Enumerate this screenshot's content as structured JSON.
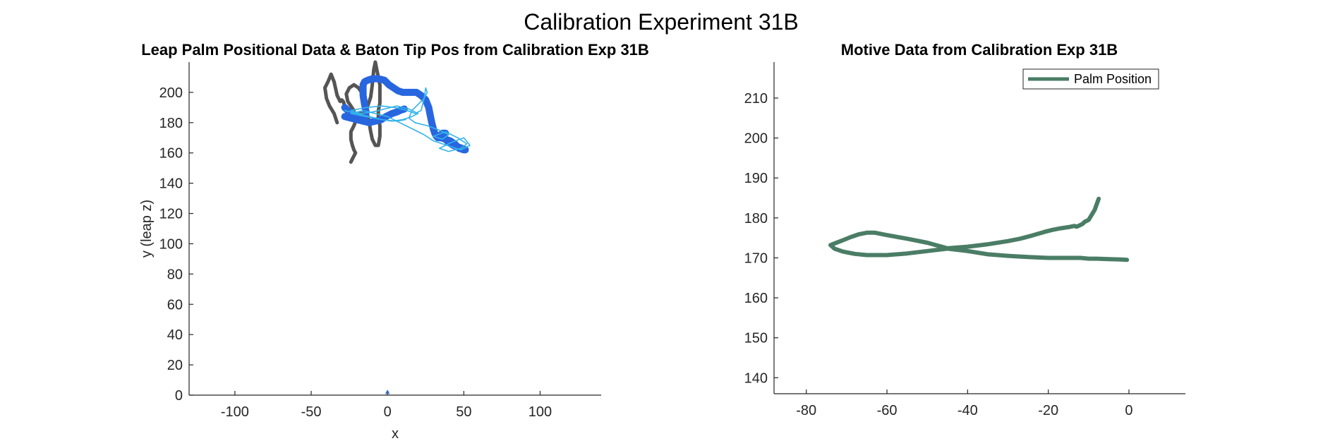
{
  "figure_title": "Calibration Experiment 31B",
  "chart_data": [
    {
      "type": "line",
      "title": "Leap Palm Positional Data & Baton Tip Pos from Calibration Exp 31B",
      "xlabel": "x",
      "ylabel": "y (leap z)",
      "xlim": [
        -130,
        140
      ],
      "ylim": [
        0,
        220
      ],
      "xticks": [
        -100,
        -50,
        0,
        50,
        100
      ],
      "yticks": [
        0,
        20,
        40,
        60,
        80,
        100,
        120,
        140,
        160,
        180,
        200
      ],
      "grid": false,
      "series": [
        {
          "color": "#555555",
          "width": 5,
          "x": [
            -33,
            -35,
            -38,
            -40,
            -41,
            -39,
            -37,
            -35,
            -33,
            -31,
            -30,
            -29,
            -28,
            -26,
            -25,
            -23,
            -22,
            -24,
            -26,
            -27,
            -25,
            -22,
            -19,
            -17,
            -16,
            -15,
            -14,
            -13,
            -12,
            -11,
            -10,
            -8,
            -6,
            -5,
            -5,
            -6,
            -6,
            -5,
            -5,
            -5,
            -6,
            -7,
            -8,
            -9,
            -10,
            -11,
            -13,
            -15,
            -18,
            -20,
            -22,
            -24,
            -24,
            -23,
            -22,
            -21,
            -22,
            -23,
            -24
          ],
          "y": [
            180,
            186,
            191,
            196,
            203,
            207,
            212,
            207,
            198,
            194,
            195,
            194,
            191,
            185,
            183,
            184,
            188,
            191,
            194,
            199,
            203,
            205,
            203,
            200,
            194,
            189,
            186,
            185,
            180,
            174,
            169,
            165,
            165,
            171,
            178,
            183,
            188,
            193,
            199,
            205,
            210,
            215,
            220,
            215,
            205,
            197,
            191,
            186,
            186,
            183,
            178,
            174,
            169,
            165,
            162,
            160,
            158,
            156,
            154
          ]
        },
        {
          "color": "#2866e0",
          "width": 10,
          "x": [
            -28,
            -26,
            -22,
            -18,
            -16,
            -15,
            -14,
            -15,
            -16,
            -16,
            -16,
            -15,
            -13,
            -10,
            -6,
            -2,
            1,
            4,
            7,
            10,
            13,
            16,
            19,
            22,
            25,
            27,
            28,
            29,
            30,
            31,
            32,
            33,
            35,
            38,
            41,
            44,
            47,
            50,
            51,
            49,
            46,
            43,
            40,
            38,
            36,
            35,
            36,
            38
          ],
          "y": [
            190,
            188,
            185,
            183,
            181,
            183,
            187,
            192,
            198,
            203,
            205,
            207,
            208,
            209,
            209,
            208,
            205,
            203,
            201,
            200,
            200,
            200,
            200,
            198,
            195,
            190,
            185,
            180,
            176,
            173,
            171,
            170,
            170,
            169,
            168,
            166,
            163,
            162,
            162,
            163,
            164,
            165,
            167,
            169,
            170,
            172,
            173,
            173
          ]
        },
        {
          "color": "#2866e0",
          "width": 10,
          "x": [
            -28,
            -24,
            -20,
            -16,
            -12,
            -8,
            -4,
            -1,
            3,
            6,
            8,
            11
          ],
          "y": [
            184,
            183,
            182,
            181,
            180,
            181,
            182,
            184,
            186,
            187,
            188,
            189
          ]
        },
        {
          "color": "#33b3ea",
          "width": 1.6,
          "x": [
            -28,
            -20,
            -12,
            -4,
            3,
            10,
            16,
            20,
            14,
            6,
            -2,
            -10,
            -18,
            -24,
            -14,
            -4,
            5,
            13,
            18,
            22,
            24,
            25,
            26,
            24,
            20,
            16,
            14,
            18,
            26,
            34,
            40,
            36,
            30,
            38,
            46,
            52,
            48,
            40,
            34,
            42,
            50,
            54,
            48,
            42,
            36,
            30,
            24,
            16,
            8,
            0,
            -8,
            -16,
            -24,
            -14,
            -4,
            6,
            12
          ],
          "y": [
            188,
            186,
            184,
            182,
            181,
            182,
            184,
            186,
            189,
            191,
            189,
            187,
            186,
            188,
            190,
            191,
            190,
            188,
            186,
            188,
            196,
            203,
            200,
            196,
            192,
            188,
            183,
            180,
            178,
            175,
            172,
            169,
            171,
            174,
            170,
            166,
            163,
            161,
            163,
            167,
            170,
            165,
            162,
            164,
            166,
            168,
            172,
            176,
            180,
            184,
            186,
            188,
            186,
            184,
            182,
            181,
            182
          ]
        },
        {
          "color": "#2866e0",
          "width": 1.5,
          "x": [
            -1,
            0,
            1
          ],
          "y": [
            1,
            3,
            1
          ]
        }
      ]
    },
    {
      "type": "line",
      "title": "Motive Data from Calibration Exp 31B",
      "xlim": [
        -88,
        14
      ],
      "ylim": [
        136,
        219
      ],
      "xticks": [
        -80,
        -60,
        -40,
        -20,
        0
      ],
      "yticks": [
        140,
        150,
        160,
        170,
        180,
        190,
        200,
        210
      ],
      "grid": false,
      "legend": {
        "placement": "top-right",
        "entries": [
          "Palm Position"
        ]
      },
      "series": [
        {
          "name": "Palm Position",
          "color": "#4a7d65",
          "width": 6,
          "x": [
            -7.5,
            -8.5,
            -10,
            -11,
            -11.5,
            -12.5,
            -13,
            -13.5,
            -15,
            -17,
            -19,
            -21,
            -24,
            -27,
            -30,
            -35,
            -40,
            -45,
            -50,
            -55,
            -60,
            -63,
            -65,
            -67,
            -69,
            -71,
            -73,
            -74,
            -73,
            -71,
            -68,
            -65,
            -60,
            -55,
            -50,
            -45,
            -40,
            -35,
            -30,
            -25,
            -20,
            -15,
            -12,
            -10,
            -8,
            -5,
            -2,
            -0.5
          ],
          "y": [
            184.8,
            182,
            179.5,
            179,
            178.5,
            178,
            177.8,
            178,
            177.7,
            177.4,
            177,
            176.5,
            175.6,
            174.8,
            174.2,
            173.4,
            172.8,
            172.4,
            173.8,
            174.8,
            175.7,
            176.3,
            176.3,
            175.9,
            175.2,
            174.4,
            173.6,
            173.2,
            172.3,
            171.6,
            171.0,
            170.7,
            170.7,
            171.1,
            171.7,
            172.3,
            171.7,
            170.9,
            170.5,
            170.2,
            170.0,
            170.0,
            170.0,
            169.8,
            169.8,
            169.7,
            169.6,
            169.5
          ]
        }
      ]
    }
  ]
}
